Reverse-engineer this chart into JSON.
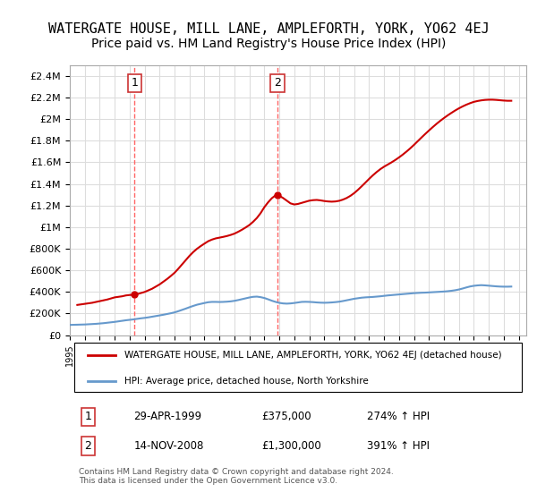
{
  "title": "WATERGATE HOUSE, MILL LANE, AMPLEFORTH, YORK, YO62 4EJ",
  "subtitle": "Price paid vs. HM Land Registry's House Price Index (HPI)",
  "title_fontsize": 11,
  "subtitle_fontsize": 10,
  "ylim": [
    0,
    2500000
  ],
  "xlim_start": 1995.0,
  "xlim_end": 2025.5,
  "yticks": [
    0,
    200000,
    400000,
    600000,
    800000,
    1000000,
    1200000,
    1400000,
    1600000,
    1800000,
    2000000,
    2200000,
    2400000
  ],
  "ytick_labels": [
    "£0",
    "£200K",
    "£400K",
    "£600K",
    "£800K",
    "£1M",
    "£1.2M",
    "£1.4M",
    "£1.6M",
    "£1.8M",
    "£2M",
    "£2.2M",
    "£2.4M"
  ],
  "xticks": [
    1995,
    1996,
    1997,
    1998,
    1999,
    2000,
    2001,
    2002,
    2003,
    2004,
    2005,
    2006,
    2007,
    2008,
    2009,
    2010,
    2011,
    2012,
    2013,
    2014,
    2015,
    2016,
    2017,
    2018,
    2019,
    2020,
    2021,
    2022,
    2023,
    2024,
    2025
  ],
  "red_line_color": "#cc0000",
  "blue_line_color": "#6699cc",
  "dashed_line_color": "#ff6666",
  "grid_color": "#dddddd",
  "background_color": "#ffffff",
  "marker1_x": 1999.33,
  "marker1_y": 375000,
  "marker1_label": "1",
  "marker2_x": 2008.87,
  "marker2_y": 1300000,
  "marker2_label": "2",
  "legend_line1": "WATERGATE HOUSE, MILL LANE, AMPLEFORTH, YORK, YO62 4EJ (detached house)",
  "legend_line2": "HPI: Average price, detached house, North Yorkshire",
  "table_row1_num": "1",
  "table_row1_date": "29-APR-1999",
  "table_row1_price": "£375,000",
  "table_row1_hpi": "274% ↑ HPI",
  "table_row2_num": "2",
  "table_row2_date": "14-NOV-2008",
  "table_row2_price": "£1,300,000",
  "table_row2_hpi": "391% ↑ HPI",
  "footer": "Contains HM Land Registry data © Crown copyright and database right 2024.\nThis data is licensed under the Open Government Licence v3.0.",
  "hpi_data_x": [
    1995.0,
    1995.25,
    1995.5,
    1995.75,
    1996.0,
    1996.25,
    1996.5,
    1996.75,
    1997.0,
    1997.25,
    1997.5,
    1997.75,
    1998.0,
    1998.25,
    1998.5,
    1998.75,
    1999.0,
    1999.25,
    1999.5,
    1999.75,
    2000.0,
    2000.25,
    2000.5,
    2000.75,
    2001.0,
    2001.25,
    2001.5,
    2001.75,
    2002.0,
    2002.25,
    2002.5,
    2002.75,
    2003.0,
    2003.25,
    2003.5,
    2003.75,
    2004.0,
    2004.25,
    2004.5,
    2004.75,
    2005.0,
    2005.25,
    2005.5,
    2005.75,
    2006.0,
    2006.25,
    2006.5,
    2006.75,
    2007.0,
    2007.25,
    2007.5,
    2007.75,
    2008.0,
    2008.25,
    2008.5,
    2008.75,
    2009.0,
    2009.25,
    2009.5,
    2009.75,
    2010.0,
    2010.25,
    2010.5,
    2010.75,
    2011.0,
    2011.25,
    2011.5,
    2011.75,
    2012.0,
    2012.25,
    2012.5,
    2012.75,
    2013.0,
    2013.25,
    2013.5,
    2013.75,
    2014.0,
    2014.25,
    2014.5,
    2014.75,
    2015.0,
    2015.25,
    2015.5,
    2015.75,
    2016.0,
    2016.25,
    2016.5,
    2016.75,
    2017.0,
    2017.25,
    2017.5,
    2017.75,
    2018.0,
    2018.25,
    2018.5,
    2018.75,
    2019.0,
    2019.25,
    2019.5,
    2019.75,
    2020.0,
    2020.25,
    2020.5,
    2020.75,
    2021.0,
    2021.25,
    2021.5,
    2021.75,
    2022.0,
    2022.25,
    2022.5,
    2022.75,
    2023.0,
    2023.25,
    2023.5,
    2023.75,
    2024.0,
    2024.25,
    2024.5
  ],
  "hpi_data_y": [
    95000,
    96000,
    97000,
    98000,
    99000,
    101000,
    103000,
    105000,
    108000,
    111000,
    115000,
    119000,
    123000,
    128000,
    133000,
    138000,
    142000,
    146000,
    151000,
    156000,
    160000,
    165000,
    171000,
    177000,
    183000,
    189000,
    196000,
    203000,
    211000,
    222000,
    234000,
    246000,
    259000,
    271000,
    282000,
    290000,
    298000,
    305000,
    308000,
    308000,
    307000,
    308000,
    310000,
    313000,
    318000,
    325000,
    333000,
    341000,
    349000,
    355000,
    357000,
    352000,
    344000,
    332000,
    319000,
    308000,
    299000,
    294000,
    292000,
    294000,
    298000,
    303000,
    308000,
    309000,
    308000,
    306000,
    303000,
    301000,
    300000,
    301000,
    303000,
    306000,
    310000,
    316000,
    323000,
    330000,
    337000,
    342000,
    347000,
    350000,
    352000,
    354000,
    357000,
    360000,
    364000,
    368000,
    371000,
    374000,
    377000,
    380000,
    383000,
    386000,
    389000,
    391000,
    393000,
    394000,
    396000,
    398000,
    400000,
    402000,
    404000,
    407000,
    411000,
    416000,
    423000,
    432000,
    442000,
    451000,
    457000,
    461000,
    463000,
    461000,
    458000,
    455000,
    452000,
    450000,
    449000,
    449000,
    450000
  ],
  "price_data_x": [
    1995.5,
    1996.0,
    1996.5,
    1997.0,
    1997.5,
    1997.75,
    1998.0,
    1998.25,
    1998.5,
    1998.75,
    1999.0,
    1999.25,
    1999.33,
    1999.5,
    1999.75,
    2000.0,
    2000.25,
    2000.5,
    2000.75,
    2001.0,
    2001.25,
    2001.5,
    2001.75,
    2002.0,
    2002.25,
    2002.5,
    2002.75,
    2003.0,
    2003.25,
    2003.5,
    2003.75,
    2004.0,
    2004.25,
    2004.5,
    2004.75,
    2005.0,
    2005.25,
    2005.5,
    2005.75,
    2006.0,
    2006.25,
    2006.5,
    2006.75,
    2007.0,
    2007.25,
    2007.5,
    2007.75,
    2008.0,
    2008.25,
    2008.5,
    2008.75,
    2008.87,
    2009.0,
    2009.25,
    2009.5,
    2009.75,
    2010.0,
    2010.25,
    2010.5,
    2010.75,
    2011.0,
    2011.25,
    2011.5,
    2011.75,
    2012.0,
    2012.25,
    2012.5,
    2012.75,
    2013.0,
    2013.25,
    2013.5,
    2013.75,
    2014.0,
    2014.25,
    2014.5,
    2014.75,
    2015.0,
    2015.25,
    2015.5,
    2015.75,
    2016.0,
    2016.25,
    2016.5,
    2016.75,
    2017.0,
    2017.25,
    2017.5,
    2017.75,
    2018.0,
    2018.25,
    2018.5,
    2018.75,
    2019.0,
    2019.25,
    2019.5,
    2019.75,
    2020.0,
    2020.25,
    2020.5,
    2020.75,
    2021.0,
    2021.25,
    2021.5,
    2021.75,
    2022.0,
    2022.25,
    2022.5,
    2022.75,
    2023.0,
    2023.25,
    2023.5,
    2023.75,
    2024.0,
    2024.25,
    2024.5
  ],
  "price_data_y": [
    280000,
    290000,
    300000,
    315000,
    330000,
    340000,
    350000,
    355000,
    360000,
    368000,
    372000,
    374000,
    375000,
    380000,
    390000,
    400000,
    415000,
    430000,
    450000,
    470000,
    495000,
    520000,
    548000,
    578000,
    615000,
    655000,
    695000,
    735000,
    770000,
    800000,
    825000,
    848000,
    870000,
    885000,
    896000,
    903000,
    910000,
    918000,
    928000,
    940000,
    957000,
    976000,
    997000,
    1020000,
    1050000,
    1085000,
    1130000,
    1185000,
    1230000,
    1268000,
    1295000,
    1300000,
    1290000,
    1270000,
    1245000,
    1220000,
    1210000,
    1215000,
    1225000,
    1235000,
    1245000,
    1250000,
    1252000,
    1248000,
    1242000,
    1238000,
    1236000,
    1238000,
    1244000,
    1255000,
    1270000,
    1290000,
    1315000,
    1345000,
    1378000,
    1412000,
    1447000,
    1480000,
    1510000,
    1537000,
    1560000,
    1580000,
    1600000,
    1622000,
    1646000,
    1672000,
    1700000,
    1730000,
    1762000,
    1796000,
    1830000,
    1863000,
    1895000,
    1926000,
    1956000,
    1984000,
    2010000,
    2035000,
    2058000,
    2080000,
    2100000,
    2118000,
    2134000,
    2148000,
    2160000,
    2168000,
    2174000,
    2178000,
    2180000,
    2180000,
    2178000,
    2175000,
    2172000,
    2170000,
    2170000,
    2172000
  ]
}
